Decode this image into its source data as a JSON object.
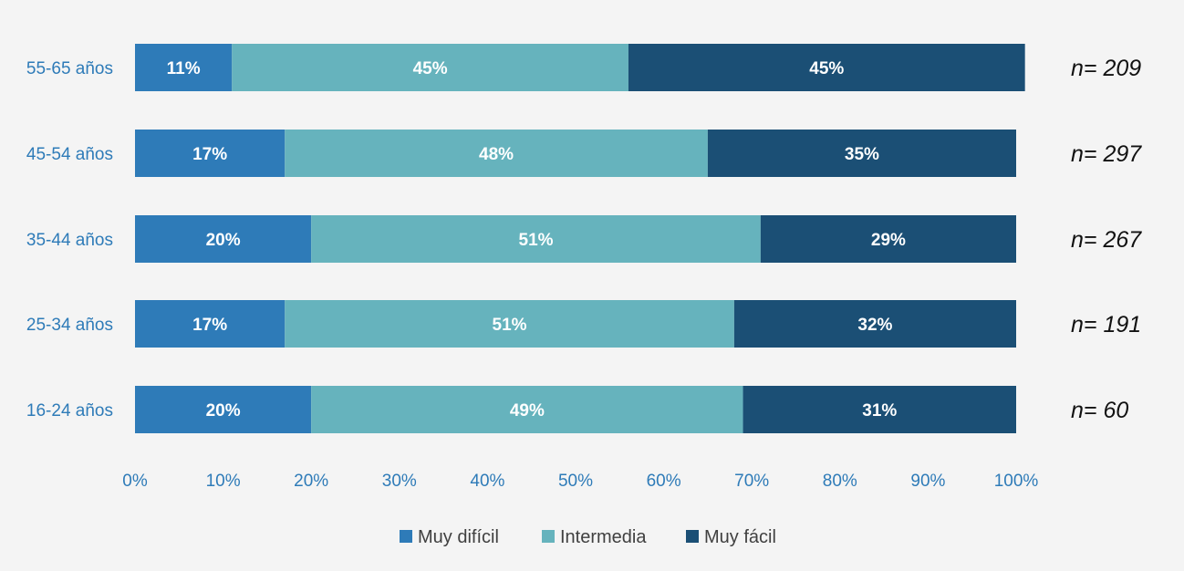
{
  "chart_data": {
    "type": "bar",
    "orientation": "horizontal",
    "stacked": true,
    "categories": [
      "55-65 años",
      "45-54 años",
      "35-44 años",
      "25-34 años",
      "16-24 años"
    ],
    "series": [
      {
        "name": "Muy difícil",
        "color": "#2e7bb8",
        "values": [
          11,
          17,
          20,
          17,
          20
        ],
        "labels": [
          "11%",
          "17%",
          "20%",
          "17%",
          "20%"
        ]
      },
      {
        "name": "Intermedia",
        "color": "#66b3bd",
        "values": [
          45,
          48,
          51,
          51,
          49
        ],
        "labels": [
          "45%",
          "48%",
          "51%",
          "51%",
          "49%"
        ]
      },
      {
        "name": "Muy fácil",
        "color": "#1b4f75",
        "values": [
          45,
          35,
          29,
          32,
          31
        ],
        "labels": [
          "45%",
          "35%",
          "29%",
          "32%",
          "31%"
        ]
      }
    ],
    "sample_sizes": [
      "n= 209",
      "n= 297",
      "n= 267",
      "n= 191",
      "n= 60"
    ],
    "xlim": [
      0,
      100
    ],
    "x_ticks": [
      "0%",
      "10%",
      "20%",
      "30%",
      "40%",
      "50%",
      "60%",
      "70%",
      "80%",
      "90%",
      "100%"
    ],
    "grid": false,
    "legend_position": "bottom",
    "title": "",
    "xlabel": "",
    "ylabel": ""
  }
}
